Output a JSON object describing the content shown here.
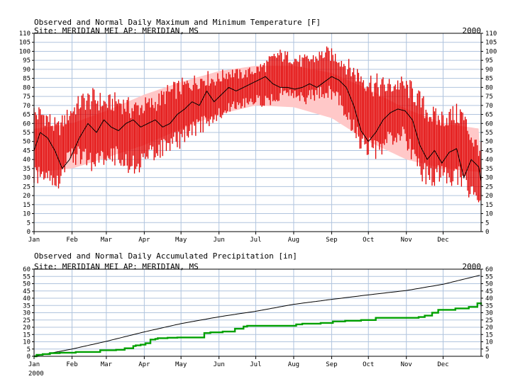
{
  "chart_data": [
    {
      "type": "line",
      "title": "Observed and Normal Daily Maximum and Minimum Temperature [F]",
      "subtitle": "Site: MERIDIAN MEI AP:  MERIDIAN, MS",
      "year": "2000",
      "categories": [
        "Jan",
        "Feb",
        "Mar",
        "Apr",
        "May",
        "Jun",
        "Jul",
        "Aug",
        "Sep",
        "Oct",
        "Nov",
        "Dec"
      ],
      "ylim": [
        0,
        110
      ],
      "yticks": [
        "0",
        "5",
        "10",
        "15",
        "20",
        "25",
        "30",
        "35",
        "40",
        "45",
        "50",
        "55",
        "60",
        "65",
        "70",
        "75",
        "80",
        "85",
        "90",
        "95",
        "100",
        "105",
        "110"
      ],
      "grid": true,
      "colors": {
        "observed_range": "#e00000",
        "normal_band": "#ffc8c8",
        "mean": "#000000",
        "grid": "#b0c4de"
      },
      "normal_band": {
        "day": [
          1,
          32,
          60,
          91,
          121,
          152,
          182,
          213,
          244,
          274,
          305,
          335,
          366
        ],
        "high": [
          57,
          60,
          67,
          76,
          83,
          89,
          92,
          92,
          88,
          79,
          68,
          60,
          57
        ],
        "low": [
          33,
          35,
          41,
          48,
          57,
          65,
          70,
          69,
          63,
          50,
          40,
          35,
          33
        ]
      },
      "observed_envelope": {
        "day": [
          1,
          10,
          20,
          30,
          40,
          50,
          60,
          70,
          80,
          90,
          100,
          110,
          120,
          130,
          140,
          150,
          160,
          170,
          180,
          190,
          200,
          210,
          220,
          230,
          240,
          250,
          260,
          270,
          280,
          290,
          300,
          310,
          320,
          330,
          340,
          350,
          360,
          366
        ],
        "max": [
          72,
          70,
          62,
          70,
          78,
          80,
          76,
          78,
          74,
          75,
          76,
          82,
          85,
          87,
          90,
          88,
          92,
          90,
          92,
          96,
          102,
          100,
          98,
          100,
          103,
          100,
          95,
          92,
          88,
          86,
          87,
          84,
          75,
          68,
          70,
          72,
          55,
          50
        ],
        "min": [
          25,
          28,
          22,
          38,
          36,
          32,
          38,
          36,
          30,
          34,
          40,
          42,
          46,
          52,
          55,
          60,
          65,
          68,
          70,
          68,
          72,
          75,
          70,
          72,
          74,
          70,
          55,
          40,
          36,
          44,
          50,
          38,
          25,
          25,
          26,
          22,
          16,
          14
        ]
      },
      "observed_mean": {
        "day": [
          1,
          6,
          12,
          18,
          24,
          30,
          38,
          45,
          52,
          58,
          64,
          70,
          76,
          82,
          88,
          94,
          100,
          106,
          112,
          118,
          124,
          130,
          136,
          142,
          148,
          154,
          160,
          166,
          172,
          178,
          184,
          190,
          196,
          202,
          208,
          214,
          220,
          226,
          232,
          238,
          244,
          250,
          256,
          262,
          268,
          274,
          280,
          286,
          292,
          298,
          304,
          310,
          316,
          322,
          328,
          334,
          340,
          346,
          352,
          358,
          364,
          366
        ],
        "mean": [
          45,
          55,
          52,
          45,
          35,
          40,
          52,
          60,
          55,
          62,
          58,
          56,
          60,
          62,
          58,
          60,
          62,
          58,
          60,
          65,
          68,
          72,
          70,
          78,
          72,
          76,
          80,
          78,
          80,
          82,
          84,
          86,
          82,
          80,
          80,
          79,
          80,
          82,
          80,
          83,
          86,
          84,
          80,
          70,
          56,
          50,
          55,
          62,
          66,
          68,
          67,
          62,
          48,
          40,
          45,
          38,
          44,
          46,
          30,
          40,
          36,
          28
        ]
      }
    },
    {
      "type": "line",
      "title": "Observed and Normal Daily Accumulated Precipitation [in]",
      "subtitle": "Site: MERIDIAN MEI AP:  MERIDIAN, MS",
      "year": "2000",
      "x_caption": "2000",
      "categories": [
        "Jan",
        "Feb",
        "Mar",
        "Apr",
        "May",
        "Jun",
        "Jul",
        "Aug",
        "Sep",
        "Oct",
        "Nov",
        "Dec"
      ],
      "ylim": [
        0,
        60
      ],
      "yticks": [
        "0",
        "5",
        "10",
        "15",
        "20",
        "25",
        "30",
        "35",
        "40",
        "45",
        "50",
        "55",
        "60"
      ],
      "grid": true,
      "colors": {
        "observed": "#00a000",
        "normal": "#000000"
      },
      "normal": {
        "day": [
          1,
          32,
          60,
          91,
          121,
          152,
          182,
          213,
          244,
          274,
          305,
          335,
          366
        ],
        "value": [
          0,
          5.0,
          10.3,
          16.8,
          22.5,
          27.2,
          31.0,
          35.8,
          39.2,
          42.3,
          45.3,
          49.6,
          56.0
        ]
      },
      "observed": {
        "day": [
          1,
          3,
          8,
          14,
          22,
          35,
          50,
          55,
          68,
          75,
          82,
          84,
          88,
          92,
          96,
          100,
          102,
          110,
          118,
          132,
          140,
          145,
          155,
          165,
          172,
          175,
          185,
          200,
          215,
          220,
          235,
          245,
          255,
          268,
          280,
          300,
          315,
          320,
          326,
          331,
          345,
          356,
          363,
          366
        ],
        "value": [
          0,
          1.0,
          1.5,
          2.2,
          2.5,
          3.0,
          3.0,
          4.2,
          4.5,
          5.5,
          7.0,
          7.5,
          8.0,
          9.0,
          11.5,
          12.0,
          12.5,
          12.8,
          13.0,
          13.0,
          16.0,
          16.5,
          17.0,
          19.0,
          20.5,
          21.0,
          21.0,
          21.0,
          22.0,
          22.5,
          23.0,
          24.0,
          24.5,
          25.0,
          26.5,
          26.5,
          27.0,
          28.0,
          30.0,
          32.0,
          33.0,
          34.0,
          36.5,
          35.5
        ]
      }
    }
  ]
}
